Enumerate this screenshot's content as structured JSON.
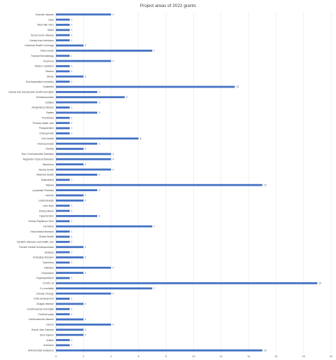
{
  "chart_data": {
    "type": "bar",
    "orientation": "horizontal",
    "title": "Project areas of 2022 grants",
    "xlim": [
      0,
      20
    ],
    "xticks": [
      0,
      2,
      4,
      6,
      8,
      10,
      12,
      14,
      16,
      18,
      20
    ],
    "grid": true,
    "legend": "none",
    "color": "#4472c4",
    "categories": [
      "Zoonotic disease",
      "Yaws",
      "West Nile Virus",
      "Water",
      "Vector-borne disease",
      "Urinary tract infections",
      "Universal Health Coverage",
      "Tuberculosis",
      "Tropical Neonatology",
      "Trachoma",
      "Tobacco addiction",
      "Tetanus",
      "Stroke",
      "Soil-transmitted helminths",
      "Snakebite",
      "Sexual and reproductive health and rights",
      "Schistosomiasis",
      "Scabies",
      "Respiratory Disease",
      "Rabies",
      "Prosthetics",
      "Primary health care",
      "Postoperative",
      "Osteoporosis",
      "One Health",
      "Onchocerciasis",
      "Obesity",
      "Non Communicable Diseases",
      "Neglected Tropical Diseases",
      "Mycetoma",
      "Mental Health",
      "Maternal Health",
      "Malnutrition",
      "Malaria",
      "Lymphatic Filariasis",
      "Leprosy",
      "Leishmaniasis",
      "Liver fluke",
      "Kidney failure",
      "Hypertension",
      "Human Papilloma Virus",
      "HIV/AIDS",
      "Heat-related illnesses",
      "Global Health",
      "Geriatric diseases and health care",
      "Female Genital Schistosomiasis",
      "Epilepsy",
      "Emerging diseases",
      "Dysentery",
      "Diabetes",
      "Depression",
      "Cryptosporidium",
      "COVID-19",
      "Co-morbidity",
      "Climate Change",
      "Child development",
      "Chagas disease",
      "Cerebrospinal meningitis",
      "Cerebral palsy",
      "Cardiovascular disease",
      "Cancer",
      "Buruli Ulcer Disease",
      "Burn Injuries",
      "Autism",
      "Arbovirus",
      "Antimicrobial resistance"
    ],
    "values": [
      4,
      1,
      1,
      1,
      1,
      1,
      2,
      7,
      1,
      4,
      1,
      1,
      2,
      1,
      13,
      3,
      5,
      3,
      1,
      3,
      1,
      1,
      1,
      1,
      6,
      3,
      2,
      4,
      4,
      2,
      4,
      3,
      1,
      15,
      3,
      2,
      2,
      1,
      1,
      3,
      1,
      7,
      1,
      1,
      1,
      2,
      1,
      2,
      1,
      4,
      2,
      1,
      19,
      7,
      4,
      1,
      2,
      1,
      1,
      2,
      4,
      2,
      2,
      1,
      1,
      15
    ]
  }
}
